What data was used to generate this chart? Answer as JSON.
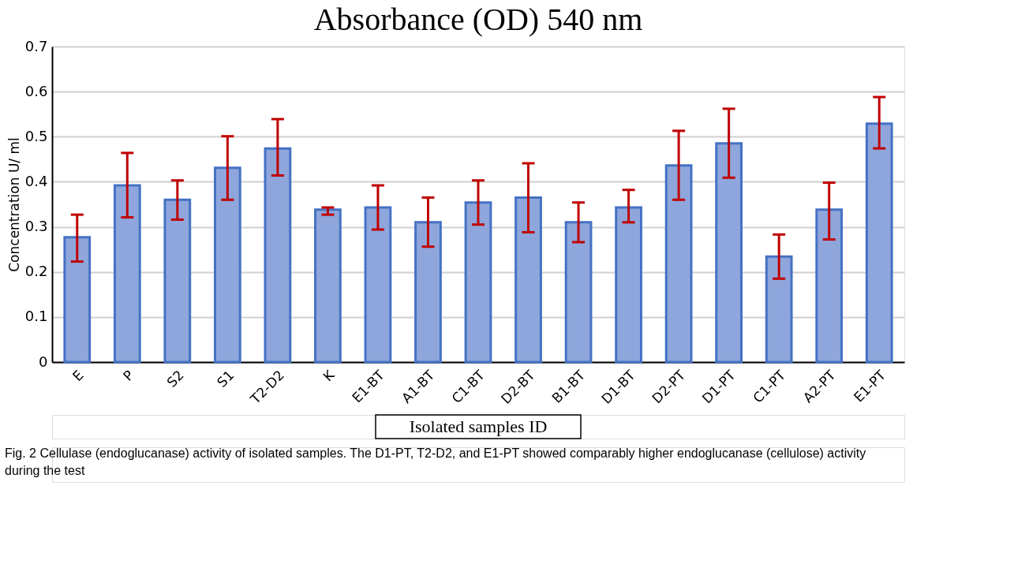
{
  "chart_data": {
    "type": "bar",
    "title": "Absorbance  (OD) 540 nm",
    "xlabel": "Isolated samples ID",
    "ylabel": "Concentration U/ ml",
    "categories": [
      "E",
      "P",
      "S2",
      "S1",
      "T2-D2",
      "K",
      "E1-BT",
      "A1-BT",
      "C1-BT",
      "D2-BT",
      "B1-BT",
      "D1-BT",
      "D2-PT",
      "D1-PT",
      "C1-PT",
      "A2-PT",
      "E1-PT"
    ],
    "series": [
      {
        "color": "#8fa6dc",
        "values": [
          0.277,
          0.392,
          0.36,
          0.431,
          0.474,
          0.338,
          0.343,
          0.31,
          0.354,
          0.365,
          0.31,
          0.343,
          0.436,
          0.485,
          0.234,
          0.338,
          0.529
        ],
        "errors": [
          [
            0.223,
            0.327
          ],
          [
            0.321,
            0.464
          ],
          [
            0.316,
            0.403
          ],
          [
            0.36,
            0.501
          ],
          [
            0.414,
            0.539
          ],
          [
            0.327,
            0.343
          ],
          [
            0.294,
            0.392
          ],
          [
            0.256,
            0.365
          ],
          [
            0.305,
            0.403
          ],
          [
            0.288,
            0.441
          ],
          [
            0.266,
            0.354
          ],
          [
            0.31,
            0.382
          ],
          [
            0.36,
            0.513
          ],
          [
            0.409,
            0.562
          ],
          [
            0.185,
            0.283
          ],
          [
            0.272,
            0.398
          ],
          [
            0.474,
            0.588
          ]
        ]
      }
    ],
    "ylim": [
      0,
      0.7
    ],
    "yticks": [
      0,
      0.1,
      0.2,
      0.3,
      0.4,
      0.5,
      0.6,
      0.7
    ],
    "grid": "y",
    "annotations": [
      "Fig. 2 Cellulase (endoglucanase) activity of isolated samples. The D1-PT, T2-D2, and E1-PT showed comparably higher endoglucanase (cellulose) activity during the test"
    ]
  }
}
